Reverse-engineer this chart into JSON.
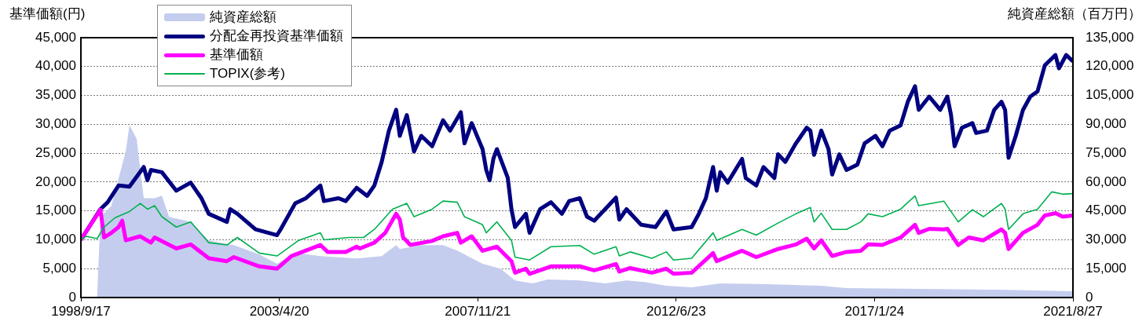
{
  "chart_data": {
    "type": "line",
    "ylabel": "基準価額(円)",
    "y2label": "純資産総額（百万円）",
    "xlim": [
      "1998-09-17",
      "2021-08-27"
    ],
    "xticks": [
      {
        "value": "1998-09-17",
        "label": "1998/9/17"
      },
      {
        "value": "2003-04-20",
        "label": "2003/4/20"
      },
      {
        "value": "2007-11-21",
        "label": "2007/11/21"
      },
      {
        "value": "2012-06-23",
        "label": "2012/6/23"
      },
      {
        "value": "2017-01-24",
        "label": "2017/1/24"
      },
      {
        "value": "2021-08-27",
        "label": "2021/8/27"
      }
    ],
    "ylim": [
      0,
      45000
    ],
    "yticks": [
      {
        "value": 0,
        "label": "0"
      },
      {
        "value": 5000,
        "label": "5,000"
      },
      {
        "value": 10000,
        "label": "10,000"
      },
      {
        "value": 15000,
        "label": "15,000"
      },
      {
        "value": 20000,
        "label": "20,000"
      },
      {
        "value": 25000,
        "label": "25,000"
      },
      {
        "value": 30000,
        "label": "30,000"
      },
      {
        "value": 35000,
        "label": "35,000"
      },
      {
        "value": 40000,
        "label": "40,000"
      },
      {
        "value": 45000,
        "label": "45,000"
      }
    ],
    "y2lim": [
      0,
      135000
    ],
    "y2ticks": [
      {
        "value": 0,
        "label": "0"
      },
      {
        "value": 15000,
        "label": "15,000"
      },
      {
        "value": 30000,
        "label": "30,000"
      },
      {
        "value": 45000,
        "label": "45,000"
      },
      {
        "value": 60000,
        "label": "60,000"
      },
      {
        "value": 75000,
        "label": "75,000"
      },
      {
        "value": 90000,
        "label": "90,000"
      },
      {
        "value": 105000,
        "label": "105,000"
      },
      {
        "value": 120000,
        "label": "120,000"
      },
      {
        "value": 135000,
        "label": "135,000"
      }
    ],
    "grid": "y",
    "legend": "top left",
    "marker": "none",
    "series": [
      {
        "name": "純資産総額",
        "type": "area",
        "axis": "y2",
        "color": "#c5cdee",
        "x": [
          "1998-09-17",
          "1999-02",
          "1999-03",
          "1999-06",
          "1999-10",
          "1999-11",
          "2000-01",
          "2000-02",
          "2000-03",
          "2000-06",
          "2000-08",
          "2000-10",
          "2001-04",
          "2001-09",
          "2002-04",
          "2002-11",
          "2003-04",
          "2003-09",
          "2004-04",
          "2005-02",
          "2005-09",
          "2006-01",
          "2006-02",
          "2006-08",
          "2007-02",
          "2007-06",
          "2008-01",
          "2008-06",
          "2008-10",
          "2009-03",
          "2009-07",
          "2010-04",
          "2010-11",
          "2011-05",
          "2011-10",
          "2012-04",
          "2012-11",
          "2013-07",
          "2014-08",
          "2015-11",
          "2016-06",
          "2019-11",
          "2021-08-27"
        ],
        "values": [
          0,
          0,
          41900,
          47600,
          76000,
          89500,
          82500,
          66300,
          51600,
          51600,
          52900,
          41900,
          39400,
          29700,
          27200,
          22400,
          17500,
          23200,
          21500,
          20300,
          21500,
          27200,
          25200,
          27200,
          27200,
          24400,
          17500,
          15000,
          8900,
          7300,
          9400,
          8900,
          7300,
          8900,
          8100,
          6100,
          5300,
          7300,
          6900,
          6100,
          4900,
          4100,
          3300
        ]
      },
      {
        "name": "分配金再投資基準価額",
        "color": "#000080",
        "x": [
          "1998-09-17",
          "1999-03",
          "1999-05",
          "1999-08",
          "1999-11",
          "2000-03",
          "2000-04",
          "2000-05",
          "2000-08",
          "2000-12",
          "2001-04",
          "2001-07",
          "2001-09",
          "2002-02",
          "2002-03",
          "2002-05",
          "2002-10",
          "2003-04",
          "2003-05",
          "2003-09",
          "2003-12",
          "2004-04",
          "2004-05",
          "2004-09",
          "2004-11",
          "2005-02",
          "2005-05",
          "2005-07",
          "2005-09",
          "2005-11",
          "2006-01",
          "2006-02",
          "2006-04",
          "2006-06",
          "2006-08",
          "2006-11",
          "2007-02",
          "2007-04",
          "2007-07",
          "2007-08",
          "2007-10",
          "2008-01",
          "2008-02",
          "2008-03",
          "2008-04",
          "2008-05",
          "2008-08",
          "2008-09",
          "2008-10",
          "2009-01",
          "2009-02",
          "2009-05",
          "2009-08",
          "2009-11",
          "2010-01",
          "2010-04",
          "2010-06",
          "2010-08",
          "2010-11",
          "2011-02",
          "2011-03",
          "2011-05",
          "2011-09",
          "2012-01",
          "2012-04",
          "2012-06",
          "2012-11",
          "2013-01",
          "2013-03",
          "2013-05",
          "2013-06",
          "2013-07",
          "2013-09",
          "2014-01",
          "2014-02",
          "2014-05",
          "2014-07",
          "2014-10",
          "2014-11",
          "2015-01",
          "2015-04",
          "2015-07",
          "2015-08",
          "2015-09",
          "2015-11",
          "2016-01",
          "2016-02",
          "2016-04",
          "2016-06",
          "2016-09",
          "2016-11",
          "2017-02",
          "2017-04",
          "2017-06",
          "2017-09",
          "2017-11",
          "2018-01",
          "2018-02",
          "2018-05",
          "2018-08",
          "2018-10",
          "2018-11",
          "2018-12",
          "2019-02",
          "2019-05",
          "2019-06",
          "2019-09",
          "2019-11",
          "2020-01",
          "2020-02",
          "2020-03",
          "2020-05",
          "2020-07",
          "2020-09",
          "2020-11",
          "2021-01",
          "2021-04",
          "2021-05",
          "2021-07",
          "2021-08-27"
        ],
        "values": [
          10000,
          15300,
          16500,
          19400,
          19200,
          22600,
          20300,
          22100,
          21700,
          18500,
          19900,
          17200,
          14500,
          13100,
          15300,
          14500,
          11800,
          10800,
          11800,
          16300,
          17200,
          19400,
          16700,
          17200,
          16700,
          19000,
          17600,
          19400,
          23500,
          28900,
          32500,
          28000,
          31600,
          25300,
          28000,
          26200,
          30700,
          28900,
          32100,
          26700,
          30200,
          25700,
          22100,
          20300,
          24000,
          25700,
          20700,
          15300,
          12200,
          14500,
          11200,
          15300,
          16500,
          14500,
          16700,
          17200,
          14000,
          13300,
          15300,
          17300,
          13500,
          15300,
          12600,
          12200,
          14900,
          11800,
          12200,
          14500,
          17200,
          22600,
          18500,
          21700,
          19900,
          24000,
          20700,
          19400,
          22600,
          20700,
          24800,
          23500,
          26700,
          29400,
          28900,
          24700,
          28900,
          25700,
          21300,
          24800,
          22100,
          23000,
          26700,
          28000,
          26200,
          28900,
          29800,
          33900,
          36600,
          32500,
          34800,
          32500,
          34800,
          31600,
          26200,
          29400,
          30200,
          28500,
          28900,
          32500,
          33900,
          32500,
          24200,
          28000,
          32500,
          34800,
          35700,
          40200,
          42000,
          39700,
          42000,
          40900
        ]
      },
      {
        "name": "基準価額",
        "color": "#ff00ff",
        "x": [
          "1998-09-17",
          "1999-03",
          "1999-04",
          "1999-06",
          "1999-08",
          "1999-09",
          "1999-10",
          "2000-02",
          "2000-05",
          "2000-06",
          "2000-12",
          "2001-04",
          "2001-09",
          "2002-02",
          "2002-04",
          "2002-11",
          "2003-04",
          "2003-08",
          "2004-04",
          "2004-06",
          "2004-11",
          "2005-02",
          "2005-03",
          "2005-07",
          "2005-10",
          "2006-01",
          "2006-02",
          "2006-03",
          "2006-05",
          "2006-11",
          "2007-02",
          "2007-06",
          "2007-07",
          "2007-10",
          "2008-01",
          "2008-05",
          "2008-09",
          "2008-10",
          "2009-01",
          "2009-02",
          "2009-08",
          "2010-04",
          "2010-08",
          "2011-02",
          "2011-03",
          "2011-06",
          "2011-12",
          "2012-04",
          "2012-06",
          "2012-11",
          "2013-05",
          "2013-06",
          "2014-01",
          "2014-05",
          "2014-11",
          "2015-04",
          "2015-07",
          "2015-09",
          "2015-11",
          "2016-02",
          "2016-06",
          "2016-10",
          "2016-12",
          "2017-04",
          "2017-09",
          "2018-01",
          "2018-02",
          "2018-05",
          "2018-09",
          "2018-10",
          "2019-01",
          "2019-04",
          "2019-08",
          "2020-01",
          "2020-02",
          "2020-03",
          "2020-07",
          "2020-11",
          "2021-01",
          "2021-04",
          "2021-06",
          "2021-08-27"
        ],
        "values": [
          10000,
          15200,
          10400,
          11200,
          12200,
          13300,
          9900,
          10600,
          9500,
          10400,
          8500,
          9200,
          6800,
          6300,
          7000,
          5400,
          5000,
          7200,
          9100,
          7900,
          7900,
          8800,
          8500,
          9500,
          11200,
          14500,
          13500,
          10400,
          9100,
          9800,
          10600,
          11200,
          9500,
          10600,
          8100,
          8800,
          6300,
          4300,
          5000,
          4100,
          5400,
          5400,
          4700,
          5800,
          4500,
          5100,
          4300,
          5000,
          4100,
          4300,
          7700,
          6300,
          8100,
          7000,
          8400,
          9200,
          10200,
          8500,
          9900,
          7200,
          7900,
          8100,
          9200,
          9100,
          10400,
          12600,
          11200,
          11900,
          11800,
          11900,
          9100,
          10400,
          9900,
          11800,
          11200,
          8400,
          11200,
          12600,
          14200,
          14600,
          14000,
          14200
        ]
      },
      {
        "name": "TOPIX(参考)",
        "color": "#00b050",
        "x": [
          "1998-09-17",
          "1998-11",
          "1999-02",
          "1999-04",
          "1999-07",
          "1999-11",
          "2000-02",
          "2000-04",
          "2000-06",
          "2000-08",
          "2000-12",
          "2001-04",
          "2001-09",
          "2002-02",
          "2002-05",
          "2002-11",
          "2003-04",
          "2003-10",
          "2004-04",
          "2004-05",
          "2004-12",
          "2005-04",
          "2005-07",
          "2005-12",
          "2006-04",
          "2006-06",
          "2006-11",
          "2007-02",
          "2007-06",
          "2007-08",
          "2008-01",
          "2008-02",
          "2008-05",
          "2008-09",
          "2008-10",
          "2009-02",
          "2009-08",
          "2010-04",
          "2010-08",
          "2011-02",
          "2011-03",
          "2011-06",
          "2011-12",
          "2012-04",
          "2012-06",
          "2012-11",
          "2013-05",
          "2013-06",
          "2014-01",
          "2014-05",
          "2014-11",
          "2015-04",
          "2015-08",
          "2015-09",
          "2015-11",
          "2016-02",
          "2016-06",
          "2016-10",
          "2016-12",
          "2017-04",
          "2017-09",
          "2018-01",
          "2018-02",
          "2018-09",
          "2019-01",
          "2019-05",
          "2019-08",
          "2020-01",
          "2020-02",
          "2020-03",
          "2020-07",
          "2020-11",
          "2021-03",
          "2021-06",
          "2021-08-27"
        ],
        "values": [
          10000,
          10600,
          10200,
          12200,
          13800,
          14900,
          16300,
          15300,
          15900,
          14000,
          12200,
          13100,
          9500,
          9100,
          10400,
          7700,
          7200,
          9900,
          11200,
          10000,
          10400,
          10400,
          11800,
          15300,
          16300,
          14000,
          15300,
          16700,
          16500,
          14000,
          12600,
          11200,
          13100,
          9900,
          7000,
          6500,
          8800,
          9000,
          7500,
          8800,
          7200,
          7900,
          6800,
          7900,
          6500,
          6800,
          11200,
          9900,
          11800,
          10800,
          12900,
          14500,
          15600,
          13100,
          14600,
          11800,
          11800,
          13100,
          14500,
          14000,
          15300,
          17600,
          15900,
          16700,
          13100,
          15200,
          14000,
          16300,
          15300,
          11800,
          14500,
          15300,
          18300,
          17900,
          18000
        ]
      }
    ]
  }
}
